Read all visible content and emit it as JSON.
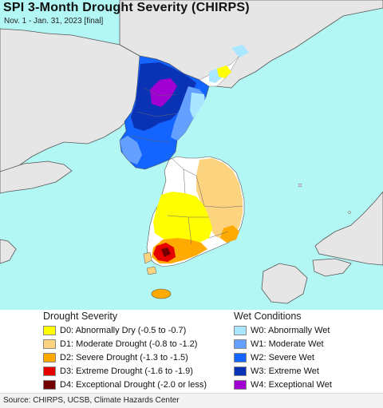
{
  "title": "SPI 3-Month Drought Severity (CHIRPS)",
  "subtitle": "Nov. 1 - Jan. 31, 2023 [final]",
  "legend": {
    "drought_heading": "Drought Severity",
    "wet_heading": "Wet Conditions",
    "drought": [
      {
        "label": "D0: Abnormally Dry (-0.5 to -0.7)",
        "color": "#ffff00"
      },
      {
        "label": "D1: Moderate Drought (-0.8 to -1.2)",
        "color": "#fcd37f"
      },
      {
        "label": "D2: Severe Drought (-1.3 to -1.5)",
        "color": "#ffaa00"
      },
      {
        "label": "D3: Extreme Drought (-1.6 to -1.9)",
        "color": "#e60000"
      },
      {
        "label": "D4: Exceptional Drought (-2.0 or less)",
        "color": "#730000"
      }
    ],
    "wet": [
      {
        "label": "W0: Abnormally Wet",
        "color": "#aae6ff"
      },
      {
        "label": "W1: Moderate Wet",
        "color": "#64a0ff"
      },
      {
        "label": "W2: Severe Wet",
        "color": "#1464ff"
      },
      {
        "label": "W3: Extreme Wet",
        "color": "#0a32b4"
      },
      {
        "label": "W4: Exceptional Wet",
        "color": "#a000d2"
      }
    ]
  },
  "source": "Source: CHIRPS, UCSB, Climate Hazards Center"
}
